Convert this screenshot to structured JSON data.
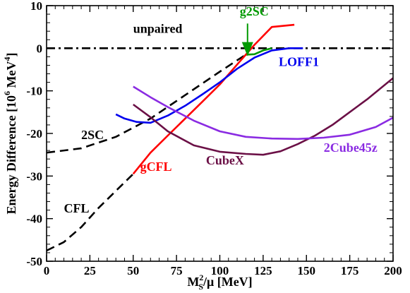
{
  "chart_data": {
    "type": "line",
    "xlabel": {
      "main": "M",
      "sup": "2",
      "sub": "S",
      "rest": "/μ [MeV]"
    },
    "ylabel": {
      "main": "Energy Difference  [10",
      "sup": "6",
      "unit": " MeV",
      "sup2": "4",
      "close": "]"
    },
    "xlim": [
      0,
      200
    ],
    "ylim": [
      -50,
      10
    ],
    "xticks": [
      0,
      25,
      50,
      75,
      100,
      125,
      150,
      175,
      200
    ],
    "yticks": [
      -50,
      -40,
      -30,
      -20,
      -10,
      0,
      10
    ],
    "grid": false,
    "series": [
      {
        "name": "unpaired",
        "color": "#000000",
        "dash": "dashdot",
        "x": [
          0,
          200
        ],
        "y": [
          0,
          0
        ]
      },
      {
        "name": "2SC",
        "color": "#000000",
        "dash": "dashed",
        "x": [
          0,
          20,
          40,
          60,
          80,
          100,
          115
        ],
        "y": [
          -24.5,
          -23.5,
          -20.8,
          -16.5,
          -11,
          -5.5,
          -1.5
        ]
      },
      {
        "name": "CFL",
        "color": "#000000",
        "dash": "dashed",
        "x": [
          0,
          10,
          20,
          30,
          40,
          50
        ],
        "y": [
          -47.5,
          -45.5,
          -42,
          -37.5,
          -33.5,
          -29.5
        ]
      },
      {
        "name": "g2SC",
        "color": "#009900",
        "dash": "solid",
        "x": [
          115,
          120,
          125,
          130
        ],
        "y": [
          -1.5,
          -1.4,
          -0.5,
          0
        ]
      },
      {
        "name": "gCFL",
        "color": "#ff0000",
        "dash": "solid",
        "x": [
          50,
          60,
          70,
          80,
          90,
          100,
          110,
          120,
          130,
          143
        ],
        "y": [
          -29.5,
          -24.5,
          -20.5,
          -16.5,
          -12.5,
          -8.5,
          -3.8,
          0.8,
          5.0,
          5.5
        ]
      },
      {
        "name": "LOFF1",
        "color": "#0000ee",
        "dash": "solid",
        "x": [
          40,
          45,
          52,
          60,
          70,
          80,
          90,
          100,
          110,
          120,
          130,
          140,
          148
        ],
        "y": [
          -15.5,
          -16.5,
          -17.3,
          -17.5,
          -15.8,
          -13.5,
          -10.8,
          -8,
          -4.8,
          -2.2,
          -0.5,
          0,
          0
        ]
      },
      {
        "name": "CubeX",
        "color": "#6b1046",
        "dash": "solid",
        "x": [
          50,
          60,
          70,
          85,
          100,
          115,
          125,
          135,
          145,
          155,
          165,
          175,
          185,
          200
        ],
        "y": [
          -13.2,
          -16.2,
          -19.5,
          -22.8,
          -24.3,
          -24.8,
          -25,
          -24.2,
          -22.5,
          -20.5,
          -18,
          -15,
          -12,
          -7
        ]
      },
      {
        "name": "2Cube45z",
        "color": "#8a2be2",
        "dash": "solid",
        "x": [
          50,
          60,
          70,
          85,
          100,
          115,
          130,
          145,
          160,
          175,
          190,
          200
        ],
        "y": [
          -9,
          -11.5,
          -13.8,
          -17,
          -19.5,
          -20.8,
          -21.2,
          -21.3,
          -21,
          -20.3,
          -18.5,
          -16.3
        ]
      }
    ],
    "annotations": [
      {
        "text": "unpaired",
        "color": "#000000",
        "x": 50,
        "y": 3.6
      },
      {
        "text": "2SC",
        "color": "#000000",
        "x": 20,
        "y": -21.3
      },
      {
        "text": "CFL",
        "color": "#000000",
        "x": 10,
        "y": -38.6
      },
      {
        "text": "g2SC",
        "color": "#009900",
        "x": 111.5,
        "y": 7.7
      },
      {
        "text": "gCFL",
        "color": "#ff0000",
        "x": 54,
        "y": -28.8
      },
      {
        "text": "LOFF1",
        "color": "#0000ee",
        "x": 134,
        "y": -4.2
      },
      {
        "text": "CubeX",
        "color": "#6b1046",
        "x": 92,
        "y": -27.3
      },
      {
        "text": "2Cube45z",
        "color": "#8a2be2",
        "x": 160,
        "y": -24.3
      }
    ],
    "arrow": {
      "color": "#009900",
      "from": [
        116,
        5.8
      ],
      "to": [
        116,
        -1.2
      ]
    }
  }
}
